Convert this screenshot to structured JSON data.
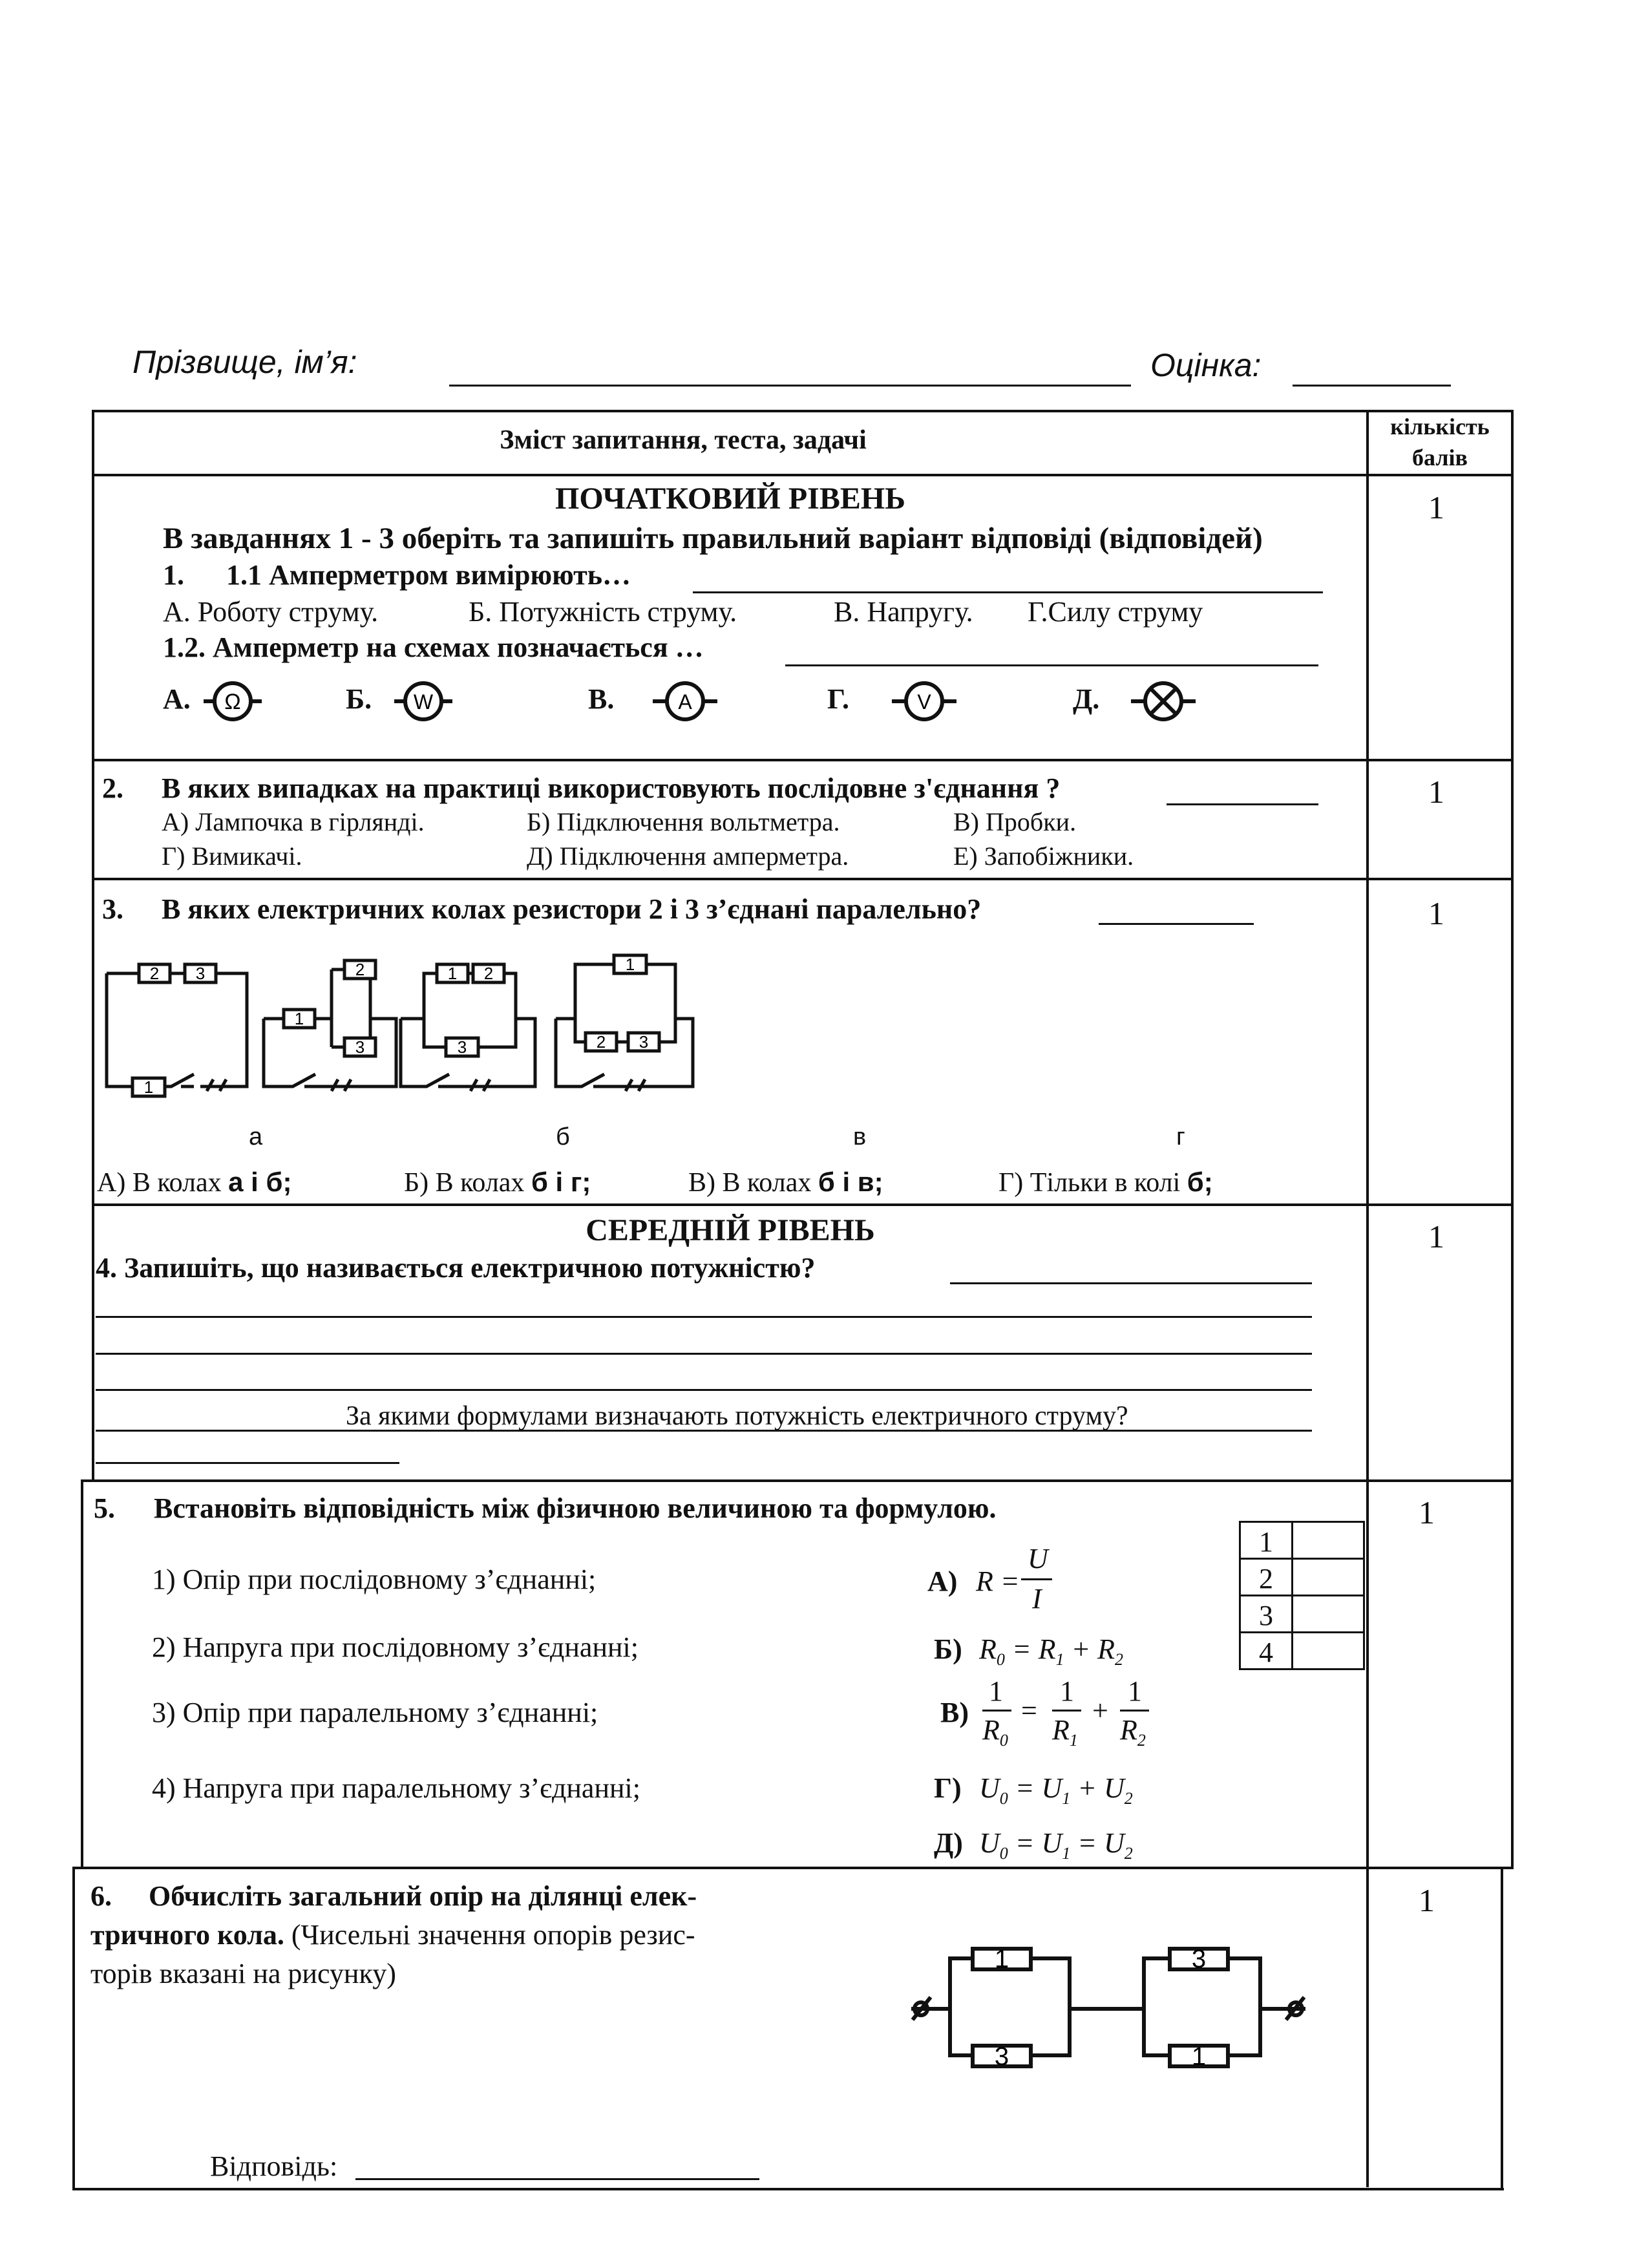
{
  "header": {
    "name_label": "Прізвище, ім’я:",
    "grade_label": "Оцінка:"
  },
  "table": {
    "col_content": "Зміст запитання, теста, задачі",
    "col_points_1": "кількість",
    "col_points_2": "балів"
  },
  "q1": {
    "level": "ПОЧАТКОВИЙ РІВЕНЬ",
    "instruction": "В завданнях 1 - 3 оберіть та запишіть правильний варіант відповіді (відповідей)",
    "num": "1.",
    "q11": "1.1 Амперметром вимірюють…",
    "options": [
      "А. Роботу струму.",
      "Б. Потужність струму.",
      "В. Напругу.",
      "Г.Силу струму"
    ],
    "q12": "1.2. Амперметр на схемах позначається …",
    "symbols": [
      {
        "label": "А.",
        "glyph": "Ω"
      },
      {
        "label": "Б.",
        "glyph": "W"
      },
      {
        "label": "В.",
        "glyph": "A"
      },
      {
        "label": "Г.",
        "glyph": "V"
      },
      {
        "label": "Д.",
        "glyph": "⊗"
      }
    ],
    "points": "1"
  },
  "q2": {
    "num": "2.",
    "text": "В яких випадках на практиці використовують послідовне з'єднання ?",
    "options": [
      "А) Лампочка в гірлянді.",
      "Б) Підключення вольтметра.",
      "В) Пробки.",
      "Г) Вимикачі.",
      "Д) Підключення амперметра.",
      "Е) Запобіжники."
    ],
    "points": "1"
  },
  "q3": {
    "num": "3.",
    "text": "В яких електричних колах резистори 2 і 3 з’єднані паралельно?",
    "circuits": [
      {
        "label": "а",
        "r": [
          "2",
          "3",
          "1"
        ]
      },
      {
        "label": "б",
        "r": [
          "1",
          "2",
          "3"
        ]
      },
      {
        "label": "в",
        "r": [
          "1",
          "2",
          "3"
        ]
      },
      {
        "label": "г",
        "r": [
          "1",
          "2",
          "3"
        ]
      }
    ],
    "answers": [
      {
        "pre": "А)  В колах ",
        "bold": "а і б;"
      },
      {
        "pre": "Б) В колах ",
        "bold": "б і  г;"
      },
      {
        "pre": "В) В колах ",
        "bold": "б і  в;"
      },
      {
        "pre": "Г)  Тільки в колі ",
        "bold": "б;"
      }
    ],
    "points": "1"
  },
  "q4": {
    "level": "СЕРЕДНІЙ РІВЕНЬ",
    "text": "4. Запишіть, що називається електричною потужністю?",
    "sub": "За якими формулами визначають потужність електричного струму?",
    "points": "1"
  },
  "q5": {
    "num": "5.",
    "text": "Встановіть відповідність між фізичною величиною та формулою.",
    "items": [
      "1) Опір при послідовному з’єднанні;",
      "2) Напруга при послідовному з’єднанні;",
      "3) Опір при паралельному з’єднанні;",
      "4) Напруга при паралельному з’єднанні;"
    ],
    "formulas": {
      "a": "А)",
      "b": "Б)",
      "v": "В)",
      "g": "Г)",
      "d": "Д)"
    },
    "grid": [
      "1",
      "2",
      "3",
      "4"
    ],
    "points": "1"
  },
  "q6": {
    "num": "6.",
    "text1": "Обчисліть загальний опір на ділянці елек-",
    "text2": "тричного кола.",
    "text2b": " (Чисельні значення опорів резис-",
    "text3": "торів вказані на рисунку)",
    "resistors": [
      "1",
      "3",
      "3",
      "1"
    ],
    "answer_label": "Відповідь:",
    "points": "1"
  }
}
